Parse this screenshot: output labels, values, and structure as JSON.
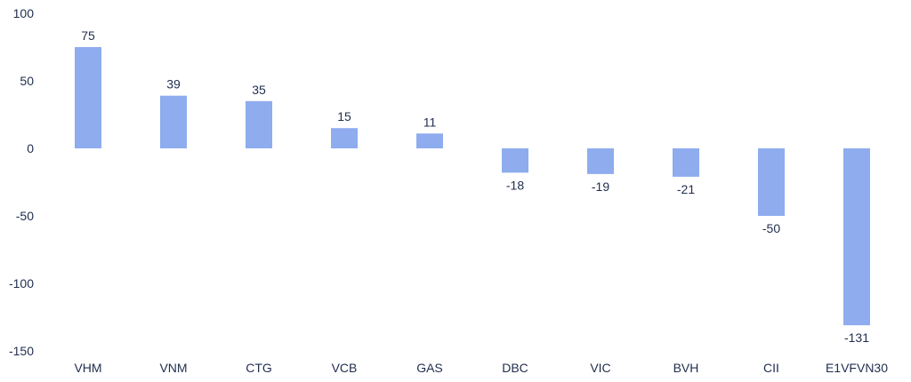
{
  "chart_data": {
    "type": "bar",
    "categories": [
      "VHM",
      "VNM",
      "CTG",
      "VCB",
      "GAS",
      "DBC",
      "VIC",
      "BVH",
      "CII",
      "E1VFVN30"
    ],
    "values": [
      75,
      39,
      35,
      15,
      11,
      -18,
      -19,
      -21,
      -50,
      -131
    ],
    "ylim": [
      -150,
      100
    ],
    "yticks": [
      100,
      50,
      0,
      -50,
      -100,
      -150
    ],
    "bar_color": "#8eacee",
    "text_color": "#1f2d4d",
    "grid": false,
    "legend": "none"
  }
}
